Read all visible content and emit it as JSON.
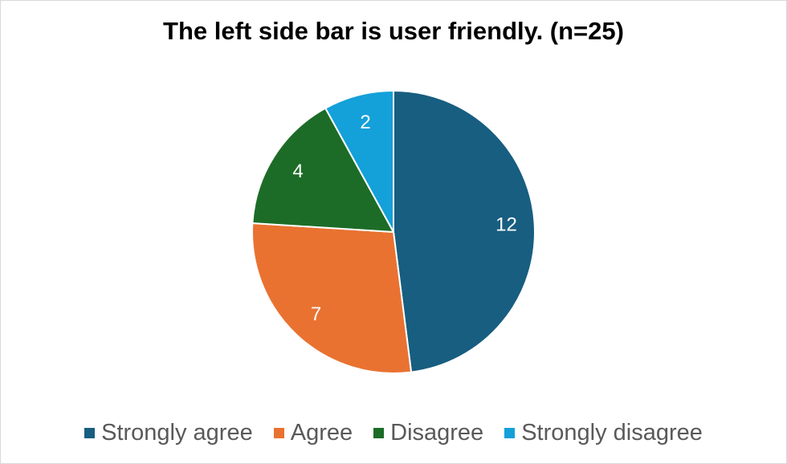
{
  "chart_data": {
    "type": "pie",
    "title": "The left side bar is user friendly. (n=25)",
    "categories": [
      "Strongly agree",
      "Agree",
      "Disagree",
      "Strongly disagree"
    ],
    "values": [
      12,
      7,
      4,
      2
    ],
    "colors": [
      "#175E80",
      "#E97231",
      "#1C6C27",
      "#14A0D9"
    ],
    "data_labels": [
      "12",
      "7",
      "4",
      "2"
    ],
    "legend_position": "bottom",
    "start_angle": "12 o'clock",
    "direction": "clockwise"
  }
}
